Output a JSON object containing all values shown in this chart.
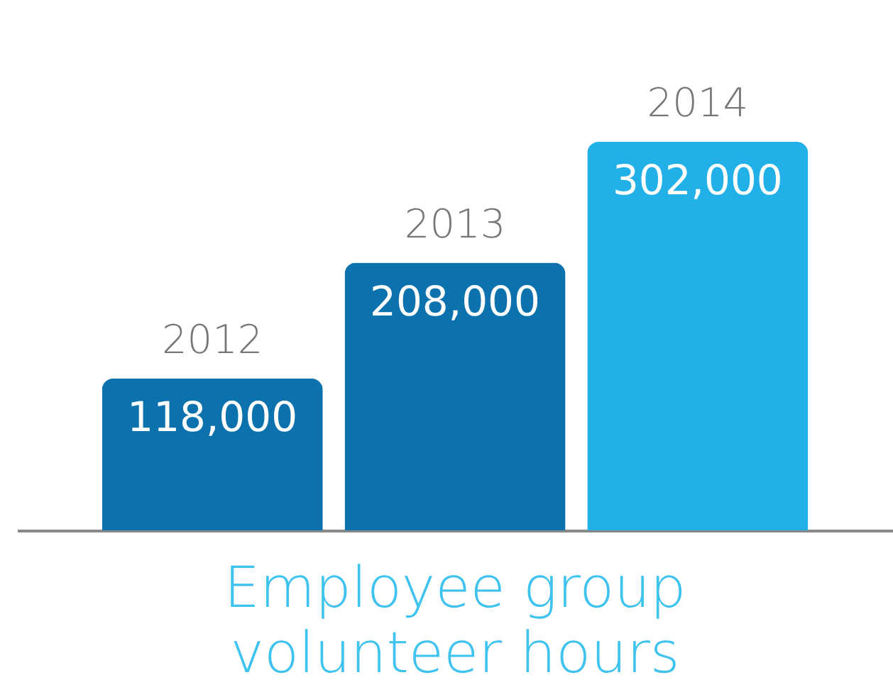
{
  "chart_data": {
    "type": "bar",
    "title": "Employee group volunteer hours",
    "categories": [
      "2012",
      "2013",
      "2014"
    ],
    "values": [
      118000,
      208000,
      302000
    ],
    "colors": [
      "#0b72ae",
      "#0b72ae",
      "#22b0e8"
    ],
    "value_labels": [
      "118,000",
      "208,000",
      "302,000"
    ]
  }
}
